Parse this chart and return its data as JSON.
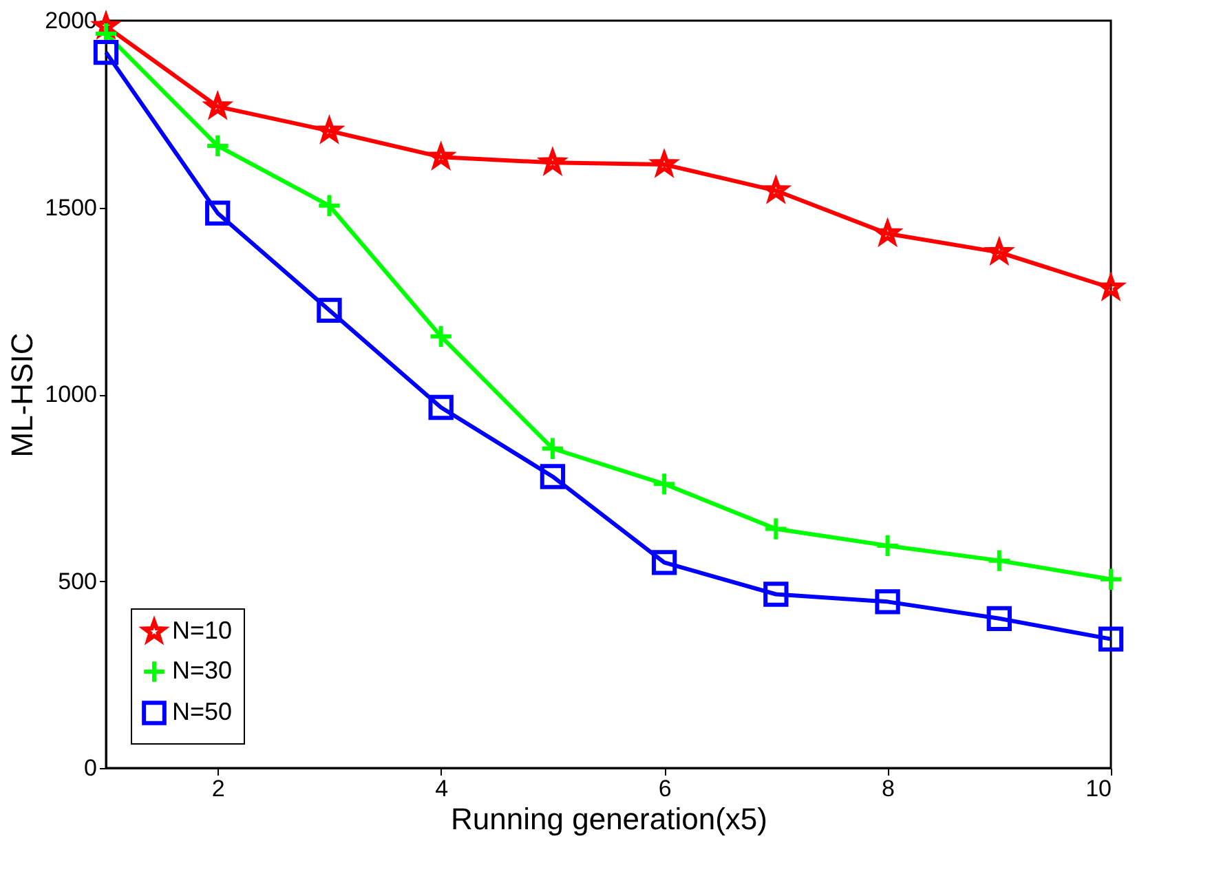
{
  "chart_data": {
    "type": "line",
    "xlabel": "Running generation(x5)",
    "ylabel": "ML-HSIC",
    "x": [
      1,
      2,
      3,
      4,
      5,
      6,
      7,
      8,
      9,
      10
    ],
    "series": [
      {
        "name": "N=10",
        "color": "#ff0000",
        "marker": "star",
        "values": [
          1985,
          1770,
          1705,
          1635,
          1620,
          1615,
          1545,
          1430,
          1380,
          1285
        ]
      },
      {
        "name": "N=30",
        "color": "#00ff00",
        "marker": "cross",
        "values": [
          1965,
          1665,
          1505,
          1155,
          855,
          760,
          640,
          595,
          555,
          505
        ]
      },
      {
        "name": "N=50",
        "color": "#0000ff",
        "marker": "square",
        "values": [
          1915,
          1485,
          1225,
          965,
          780,
          550,
          465,
          445,
          400,
          345
        ]
      }
    ],
    "xlim": [
      1,
      10
    ],
    "xticks": [
      2,
      4,
      6,
      8,
      10
    ],
    "ylim": [
      0,
      2000
    ],
    "yticks": [
      0,
      500,
      1000,
      1500,
      2000
    ],
    "grid": false,
    "legend": "bottom left",
    "line_style": "solid"
  }
}
